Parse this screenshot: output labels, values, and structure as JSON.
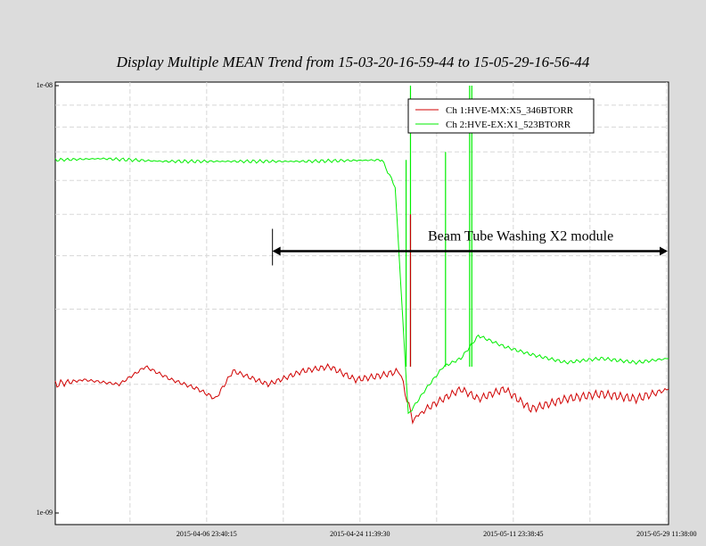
{
  "title": "Display Multiple MEAN Trend from 15-03-20-16-59-44 to 15-05-29-16-56-44",
  "chart_data": {
    "type": "line",
    "y_scale": "log",
    "ylim": [
      1e-09,
      1e-08
    ],
    "y_ticks": [
      {
        "value": 1e-08,
        "label": "1e-08"
      },
      {
        "value": 1e-09,
        "label": "1e-09"
      }
    ],
    "x_range": [
      "2015-03-20 16:59:44",
      "2015-05-29 16:56:44"
    ],
    "x_ticks": [
      "2015-04-06 23:40:15",
      "2015-04-24 11:39:30",
      "2015-05-11 23:38:45",
      "2015-05-29 11:38:00"
    ],
    "grid": true,
    "legend_position": "top-right",
    "series": [
      {
        "name": "Ch 1:HVE-MX:X5_346BTORR",
        "color": "#d00000",
        "points": [
          [
            "2015-03-20 17:00",
            2e-09
          ],
          [
            "2015-03-24 00:00",
            2.05e-09
          ],
          [
            "2015-03-28 00:00",
            2e-09
          ],
          [
            "2015-03-31 00:00",
            2.2e-09
          ],
          [
            "2015-04-03 00:00",
            2.05e-09
          ],
          [
            "2015-04-06 00:00",
            1.95e-09
          ],
          [
            "2015-04-08 00:00",
            1.85e-09
          ],
          [
            "2015-04-10 00:00",
            2.15e-09
          ],
          [
            "2015-04-14 00:00",
            2e-09
          ],
          [
            "2015-04-18 00:00",
            2.15e-09
          ],
          [
            "2015-04-21 00:00",
            2.2e-09
          ],
          [
            "2015-04-24 00:00",
            2.05e-09
          ],
          [
            "2015-04-27 00:00",
            2.1e-09
          ],
          [
            "2015-04-29 00:00",
            2.15e-09
          ],
          [
            "2015-04-30 12:00",
            1.65e-09
          ],
          [
            "2015-05-02 00:00",
            1.75e-09
          ],
          [
            "2015-05-04 00:00",
            1.85e-09
          ],
          [
            "2015-05-06 00:00",
            1.95e-09
          ],
          [
            "2015-05-08 00:00",
            1.85e-09
          ],
          [
            "2015-05-11 00:00",
            1.95e-09
          ],
          [
            "2015-05-14 00:00",
            1.75e-09
          ],
          [
            "2015-05-18 00:00",
            1.85e-09
          ],
          [
            "2015-05-22 00:00",
            1.9e-09
          ],
          [
            "2015-05-26 00:00",
            1.85e-09
          ],
          [
            "2015-05-29 16:56",
            1.95e-09
          ]
        ]
      },
      {
        "name": "Ch 2:HVE-EX:X1_523BTORR",
        "color": "#00ee00",
        "points": [
          [
            "2015-03-20 17:00",
            6.7e-09
          ],
          [
            "2015-03-26 00:00",
            6.75e-09
          ],
          [
            "2015-04-02 00:00",
            6.65e-09
          ],
          [
            "2015-04-10 00:00",
            6.65e-09
          ],
          [
            "2015-04-18 00:00",
            6.65e-09
          ],
          [
            "2015-04-27 00:00",
            6.7e-09
          ],
          [
            "2015-04-28 12:00",
            5.8e-09
          ],
          [
            "2015-04-30 00:00",
            1.7e-09
          ],
          [
            "2015-05-02 00:00",
            1.95e-09
          ],
          [
            "2015-05-04 00:00",
            2.2e-09
          ],
          [
            "2015-05-06 00:00",
            2.3e-09
          ],
          [
            "2015-05-08 00:00",
            2.6e-09
          ],
          [
            "2015-05-11 00:00",
            2.45e-09
          ],
          [
            "2015-05-14 00:00",
            2.35e-09
          ],
          [
            "2015-05-18 00:00",
            2.25e-09
          ],
          [
            "2015-05-22 00:00",
            2.3e-09
          ],
          [
            "2015-05-26 00:00",
            2.25e-09
          ],
          [
            "2015-05-29 16:56",
            2.3e-09
          ]
        ]
      }
    ],
    "annotations": [
      {
        "text": "Beam Tube Washing X2 module",
        "arrow_from": "2015-04-14 12:00",
        "arrow_to": "2015-05-29 16:56",
        "y": 4.1e-09
      }
    ]
  }
}
